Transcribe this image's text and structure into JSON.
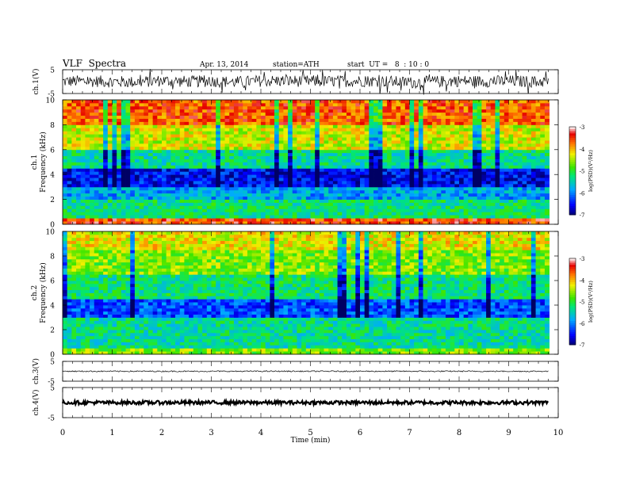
{
  "header": {
    "title": "VLF  Spectra",
    "date": "Apr. 13, 2014",
    "station": "station=ATH",
    "start": "start  UT =   8  : 10 : 0"
  },
  "chart_data": [
    {
      "type": "line",
      "name": "ch1-waveform",
      "ylabel": "ch.1(V)",
      "ylim": [
        -5,
        5
      ],
      "yticks": [
        "5",
        "-5"
      ],
      "xlim": [
        0,
        9.8
      ],
      "x": [
        0,
        0.5,
        1,
        1.5,
        2,
        2.5,
        3,
        3.5,
        4,
        4.5,
        5,
        5.5,
        6,
        6.5,
        7,
        7.5,
        8,
        8.5,
        9,
        9.5,
        9.8
      ],
      "y": [
        0.1,
        0.2,
        0,
        -0.2,
        0.4,
        0,
        0.2,
        -0.2,
        0.3,
        0.3,
        0.2,
        0.1,
        0.3,
        0.2,
        -0.4,
        0,
        0.3,
        0.1,
        0.2,
        0,
        0.1
      ],
      "spread": 2.5,
      "color": "#000000"
    },
    {
      "type": "heatmap",
      "name": "ch1-spectrogram",
      "ylabel": "ch.1\nFrequency (kHz)",
      "ylim": [
        0,
        10
      ],
      "yticks": [
        "0",
        "2",
        "4",
        "6",
        "8",
        "10"
      ],
      "xlim": [
        0,
        10
      ],
      "z_unit": "log(PSD)(V²/Hz)",
      "zlim": [
        -7,
        -3
      ],
      "colorbar_ticks": [
        "-3",
        "-4",
        "-5",
        "-6",
        "-7"
      ],
      "band_levels_by_kHz": [
        {
          "f": [
            0,
            0.6
          ],
          "logpsd": -3.5
        },
        {
          "f": [
            0.6,
            2.0
          ],
          "logpsd": -5.2
        },
        {
          "f": [
            2.0,
            3.0
          ],
          "logpsd": -5.8
        },
        {
          "f": [
            3.0,
            4.5
          ],
          "logpsd": -6.5
        },
        {
          "f": [
            4.5,
            6.0
          ],
          "logpsd": -5.3
        },
        {
          "f": [
            6.0,
            8.0
          ],
          "logpsd": -4.3
        },
        {
          "f": [
            8.0,
            10.0
          ],
          "logpsd": -3.6
        }
      ]
    },
    {
      "type": "heatmap",
      "name": "ch2-spectrogram",
      "ylabel": "ch.2\nFrequency (kHz)",
      "ylim": [
        0,
        10
      ],
      "yticks": [
        "0",
        "2",
        "4",
        "6",
        "8",
        "10"
      ],
      "xlim": [
        0,
        10
      ],
      "z_unit": "log(PSD)(V²/Hz)",
      "zlim": [
        -7,
        -3
      ],
      "colorbar_ticks": [
        "-3",
        "-4",
        "-5",
        "-6",
        "-7"
      ],
      "band_levels_by_kHz": [
        {
          "f": [
            0,
            0.6
          ],
          "logpsd": -4.6
        },
        {
          "f": [
            0.6,
            3.0
          ],
          "logpsd": -5.3
        },
        {
          "f": [
            3.0,
            4.5
          ],
          "logpsd": -6.2
        },
        {
          "f": [
            4.5,
            6.5
          ],
          "logpsd": -5.2
        },
        {
          "f": [
            6.5,
            8.5
          ],
          "logpsd": -4.6
        },
        {
          "f": [
            8.5,
            10.0
          ],
          "logpsd": -4.2
        }
      ]
    },
    {
      "type": "line",
      "name": "ch3-waveform",
      "ylabel": "ch.3(V)",
      "ylim": [
        -5,
        5
      ],
      "yticks": [
        "5",
        "-5"
      ],
      "xlim": [
        0,
        9.8
      ],
      "x": [
        0,
        9.8
      ],
      "y": [
        0,
        0
      ],
      "spread": 0.3,
      "color": "#000000"
    },
    {
      "type": "line",
      "name": "ch4-waveform",
      "ylabel": "ch.4(V)",
      "ylim": [
        -5,
        5
      ],
      "yticks": [
        "5",
        "-5"
      ],
      "xlim": [
        0,
        9.8
      ],
      "x": [
        0,
        9.8
      ],
      "y": [
        0,
        0
      ],
      "spread": 0.6,
      "color": "#000000"
    }
  ],
  "xaxis": {
    "label": "Time  (min)",
    "ticks": [
      "0",
      "1",
      "2",
      "3",
      "4",
      "5",
      "6",
      "7",
      "8",
      "9",
      "10"
    ],
    "range": [
      0,
      10
    ]
  }
}
